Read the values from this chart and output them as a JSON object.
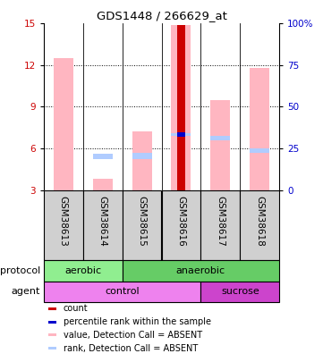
{
  "title": "GDS1448 / 266629_at",
  "samples": [
    "GSM38613",
    "GSM38614",
    "GSM38615",
    "GSM38616",
    "GSM38617",
    "GSM38618"
  ],
  "ylim_left": [
    3,
    15
  ],
  "ylim_right": [
    0,
    100
  ],
  "yticks_left": [
    3,
    6,
    9,
    12,
    15
  ],
  "yticks_right": [
    0,
    25,
    50,
    75,
    100
  ],
  "ytick_labels_right": [
    "0",
    "25",
    "50",
    "75",
    "100%"
  ],
  "pink_bars": {
    "GSM38613": [
      3.0,
      12.5
    ],
    "GSM38614": [
      3.0,
      3.8
    ],
    "GSM38615": [
      3.0,
      7.2
    ],
    "GSM38616": [
      3.0,
      14.9
    ],
    "GSM38617": [
      3.0,
      9.5
    ],
    "GSM38618": [
      3.0,
      11.8
    ]
  },
  "light_blue_bars": {
    "GSM38613": null,
    "GSM38614": [
      5.2,
      5.6
    ],
    "GSM38615": [
      5.2,
      5.7
    ],
    "GSM38616": [
      6.9,
      7.1
    ],
    "GSM38617": [
      6.6,
      6.9
    ],
    "GSM38618": [
      5.7,
      6.0
    ]
  },
  "red_bar": {
    "sample": "GSM38616",
    "vals": [
      3.0,
      14.9
    ]
  },
  "blue_dot": {
    "sample": "GSM38616",
    "y": 7.0
  },
  "protocol_color_aerobic": "#90EE90",
  "protocol_color_anaerobic": "#66CC66",
  "agent_color_control": "#EE82EE",
  "agent_color_sucrose": "#CC44CC",
  "pink_color": "#FFB6C1",
  "light_blue_color": "#B0CCFF",
  "red_color": "#CC0000",
  "blue_color": "#0000CC",
  "left_axis_color": "#CC0000",
  "right_axis_color": "#0000CC",
  "label_bg": "#D0D0D0",
  "legend_items": [
    [
      "#CC0000",
      "count"
    ],
    [
      "#0000CC",
      "percentile rank within the sample"
    ],
    [
      "#FFB6C1",
      "value, Detection Call = ABSENT"
    ],
    [
      "#B0CCFF",
      "rank, Detection Call = ABSENT"
    ]
  ]
}
